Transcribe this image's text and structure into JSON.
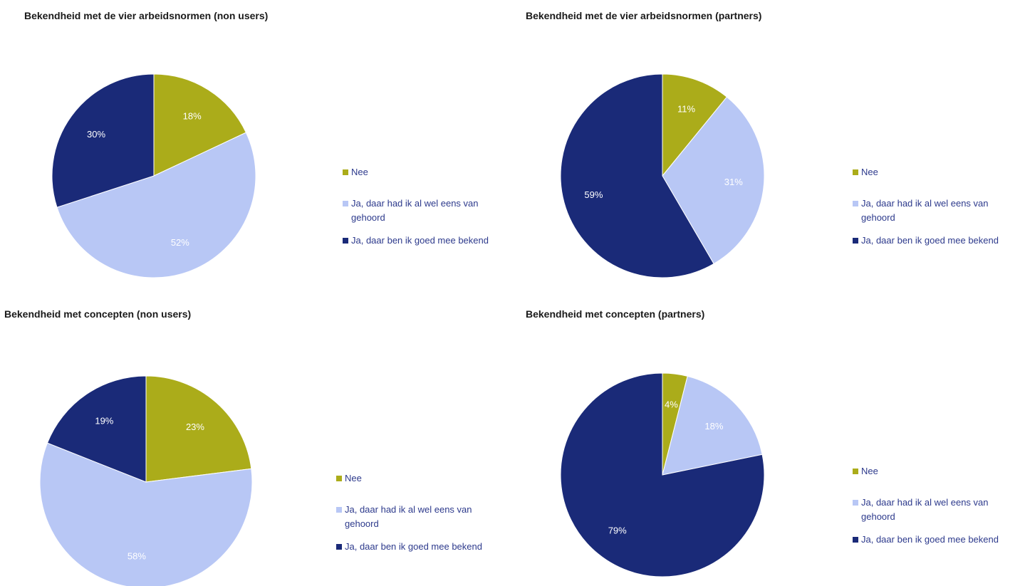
{
  "colors": {
    "nee": "#abac1a",
    "gehoord": "#b8c7f5",
    "bekend": "#1a2a78"
  },
  "chart_data": [
    {
      "type": "pie",
      "title": "Bekendheid met de vier arbeidsnormen (non users)",
      "categories": [
        "Nee",
        "Ja, daar had ik al wel eens van gehoord",
        "Ja, daar ben ik goed mee bekend"
      ],
      "values": [
        18,
        52,
        30
      ],
      "labels": [
        "18%",
        "52%",
        "30%"
      ],
      "legend": "right"
    },
    {
      "type": "pie",
      "title": "Bekendheid met de vier arbeidsnormen (partners)",
      "categories": [
        "Nee",
        "Ja, daar had ik al wel eens van gehoord",
        "Ja, daar ben ik goed mee bekend"
      ],
      "values": [
        11,
        31,
        59
      ],
      "labels": [
        "11%",
        "31%",
        "59%"
      ],
      "legend": "right"
    },
    {
      "type": "pie",
      "title": "Bekendheid met concepten (non users)",
      "categories": [
        "Nee",
        "Ja, daar had ik al wel eens van gehoord",
        "Ja, daar ben ik goed mee bekend"
      ],
      "values": [
        23,
        58,
        19
      ],
      "labels": [
        "23%",
        "58%",
        "19%"
      ],
      "legend": "right"
    },
    {
      "type": "pie",
      "title": "Bekendheid met concepten (partners)",
      "categories": [
        "Nee",
        "Ja, daar had ik al wel eens van gehoord",
        "Ja, daar ben ik goed mee bekend"
      ],
      "values": [
        4,
        18,
        79
      ],
      "labels": [
        "4%",
        "18%",
        "79%"
      ],
      "legend": "right"
    }
  ],
  "legend_lines": [
    [
      "Nee",
      [
        "Ja, daar had ik al wel eens van",
        "gehoord"
      ],
      [
        "Ja, daar ben ik goed mee",
        "bekend"
      ]
    ]
  ]
}
